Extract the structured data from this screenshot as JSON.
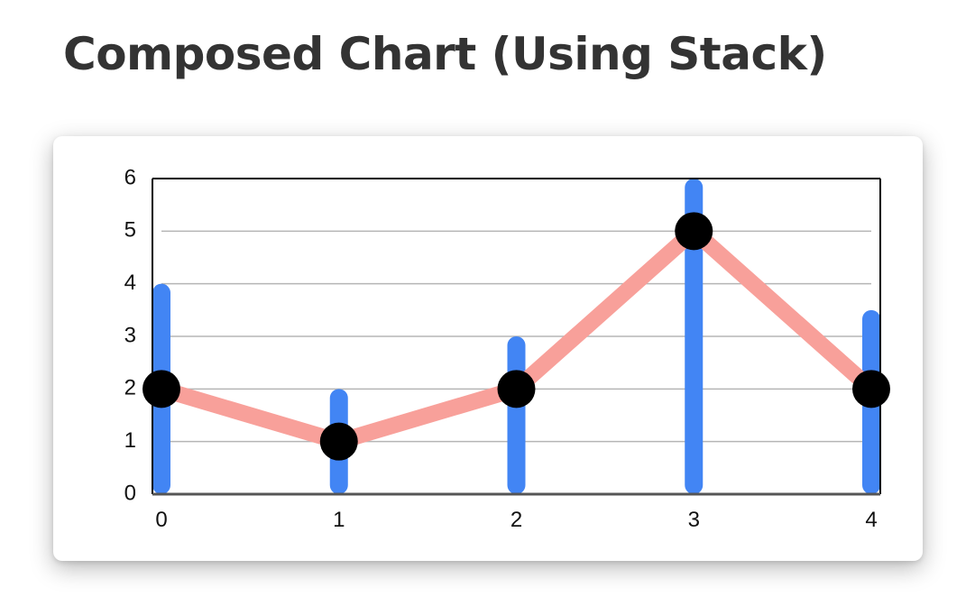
{
  "page": {
    "title": "Composed Chart (Using Stack)"
  },
  "chart_data": {
    "type": "composed",
    "title": "",
    "xlabel": "",
    "ylabel": "",
    "x": [
      0,
      1,
      2,
      3,
      4
    ],
    "xticks": [
      "0",
      "1",
      "2",
      "3",
      "4"
    ],
    "yticks": [
      "0",
      "1",
      "2",
      "3",
      "4",
      "5",
      "6"
    ],
    "xlim": [
      0,
      4
    ],
    "ylim": [
      0,
      6
    ],
    "grid": "horizontal",
    "series": [
      {
        "type": "bar",
        "values": [
          4,
          2,
          3,
          6,
          3.5
        ],
        "color": "#4285f4"
      },
      {
        "type": "line",
        "values": [
          2,
          1,
          2,
          5,
          2
        ],
        "line_color": "#f8a09a",
        "marker_color": "#000000"
      }
    ]
  }
}
